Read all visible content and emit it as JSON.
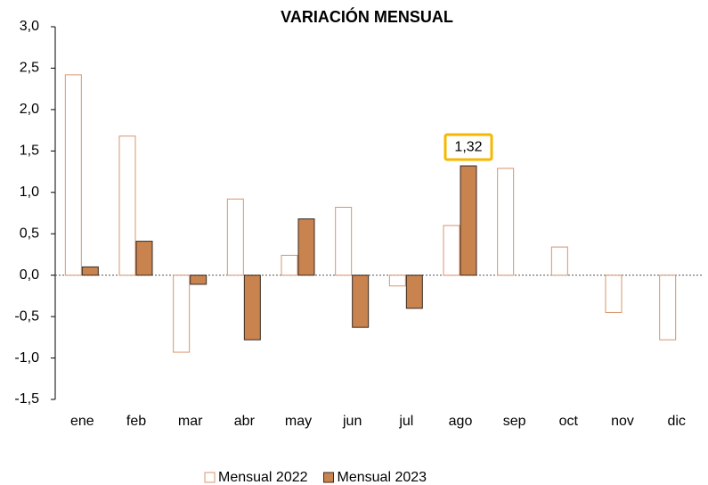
{
  "chart_data": {
    "type": "bar",
    "title": "VARIACIÓN MENSUAL",
    "categories": [
      "ene",
      "feb",
      "mar",
      "abr",
      "may",
      "jun",
      "jul",
      "ago",
      "sep",
      "oct",
      "nov",
      "dic"
    ],
    "series": [
      {
        "name": "Mensual 2022",
        "color": "#ffffff",
        "stroke": "#d9946c",
        "values": [
          2.42,
          1.68,
          -0.93,
          0.92,
          0.24,
          0.82,
          -0.13,
          0.6,
          1.29,
          0.34,
          -0.45,
          -0.78
        ]
      },
      {
        "name": "Mensual 2023",
        "color": "#c9834f",
        "stroke": "#3a2a1f",
        "values": [
          0.1,
          0.41,
          -0.11,
          -0.78,
          0.68,
          -0.63,
          -0.4,
          1.32,
          null,
          null,
          null,
          null
        ],
        "value_labels": [
          null,
          null,
          null,
          null,
          null,
          null,
          null,
          "1,32",
          null,
          null,
          null,
          null
        ]
      }
    ],
    "ylim": [
      -1.5,
      3.0
    ],
    "yticks": [
      {
        "value": -1.5,
        "label": "-1,5"
      },
      {
        "value": -1.0,
        "label": "-1,0"
      },
      {
        "value": -0.5,
        "label": "-0,5"
      },
      {
        "value": 0,
        "label": "0,0"
      },
      {
        "value": 0.5,
        "label": "0,5"
      },
      {
        "value": 1.0,
        "label": "1,0"
      },
      {
        "value": 1.5,
        "label": "1,5"
      },
      {
        "value": 2.0,
        "label": "2,0"
      },
      {
        "value": 2.5,
        "label": "2,5"
      },
      {
        "value": 3.0,
        "label": "3,0"
      }
    ],
    "legend": "bottom"
  }
}
